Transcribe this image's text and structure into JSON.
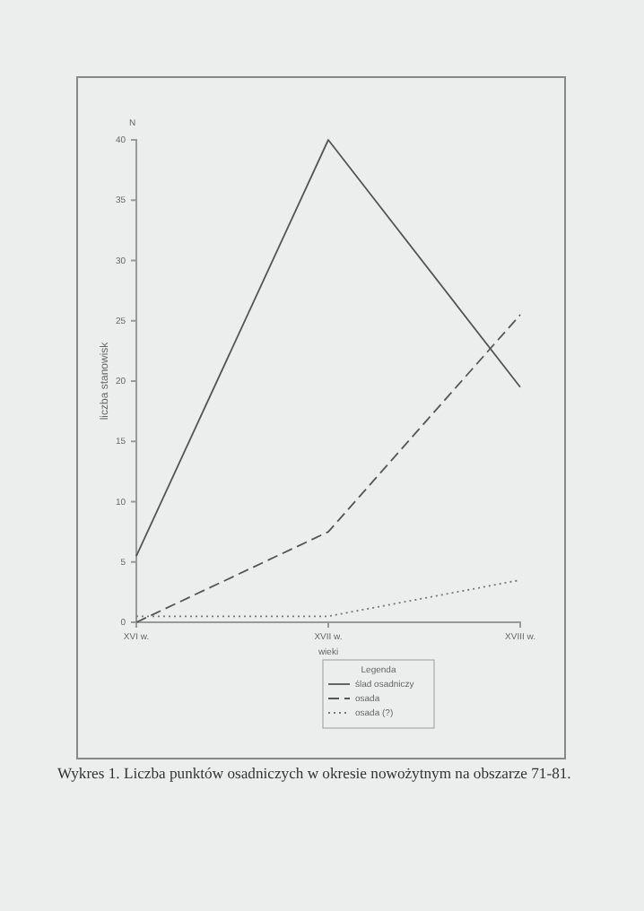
{
  "chart_data": {
    "type": "line",
    "xlabel": "wieki",
    "ylabel": "liczba stanowisk",
    "legend_title": "Legenda",
    "categories": [
      "XVI w.",
      "XVII w.",
      "XVIII w."
    ],
    "series": [
      {
        "name": "ślad osadniczy",
        "color": "#555555",
        "line_style": "solid",
        "values": [
          5.5,
          40,
          19.5
        ]
      },
      {
        "name": "osada",
        "color": "#555555",
        "line_style": "dashed",
        "values": [
          0,
          7.5,
          25.5
        ]
      },
      {
        "name": "osada (?)",
        "color": "#777777",
        "line_style": "dotted",
        "values": [
          0.5,
          0.5,
          3.5
        ]
      }
    ],
    "ylim": [
      0,
      40
    ],
    "yticks": [
      0,
      5,
      10,
      15,
      20,
      25,
      30,
      35,
      40
    ],
    "legend": "bottom",
    "marker": "none",
    "annotations": [
      "N",
      "Wykres 1. Liczba punktów osadniczych w okresie nowożytnym na obszarze 71-81."
    ]
  }
}
